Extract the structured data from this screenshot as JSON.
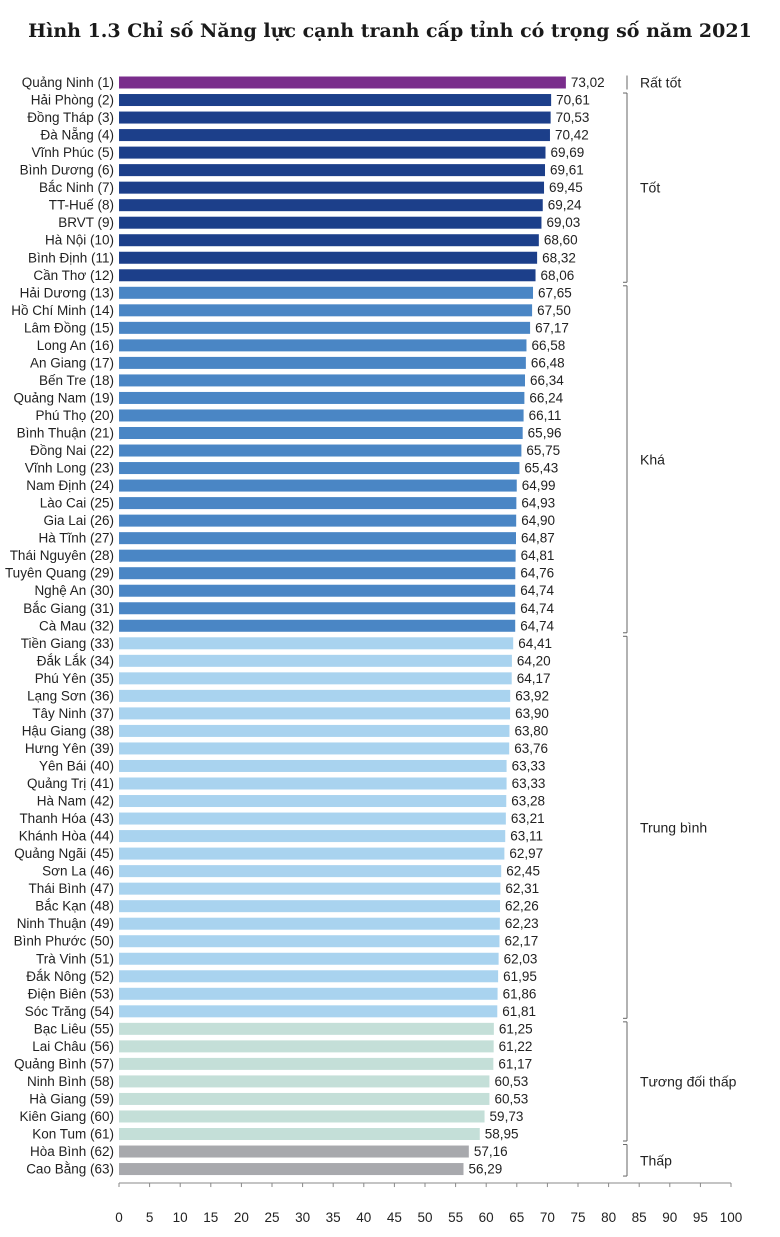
{
  "chart_data": {
    "type": "bar",
    "orientation": "horizontal",
    "title": "Hình 1.3 Chỉ số Năng lực cạnh tranh cấp tỉnh có trọng số năm 2021",
    "xlim": [
      0,
      100
    ],
    "xticks": [
      0,
      5,
      10,
      15,
      20,
      25,
      30,
      35,
      40,
      45,
      50,
      55,
      60,
      65,
      70,
      75,
      80,
      85,
      90,
      95,
      100
    ],
    "xtick_labels": [
      "0",
      "5",
      "10",
      "15",
      "20",
      "25",
      "30",
      "35",
      "40",
      "45",
      "50",
      "55",
      "60",
      "65",
      "70",
      "75",
      "80",
      "85",
      "90",
      "95",
      "100"
    ],
    "grid": false,
    "categories": [
      "Quảng Ninh (1)",
      "Hải Phòng (2)",
      "Đồng Tháp (3)",
      "Đà Nẵng (4)",
      "Vĩnh Phúc (5)",
      "Bình Dương (6)",
      "Bắc Ninh (7)",
      "TT-Huế (8)",
      "BRVT (9)",
      "Hà Nội (10)",
      "Bình Định (11)",
      "Cần Thơ (12)",
      "Hải Dương (13)",
      "Hồ Chí Minh (14)",
      "Lâm Đồng (15)",
      "Long An (16)",
      "An Giang (17)",
      "Bến Tre (18)",
      "Quảng Nam (19)",
      "Phú Thọ (20)",
      "Bình Thuận (21)",
      "Đồng Nai (22)",
      "Vĩnh Long (23)",
      "Nam Định (24)",
      "Lào Cai (25)",
      "Gia Lai (26)",
      "Hà Tĩnh (27)",
      "Thái Nguyên (28)",
      "Tuyên Quang (29)",
      "Nghệ An (30)",
      "Bắc Giang (31)",
      "Cà Mau (32)",
      "Tiền Giang (33)",
      "Đắk Lắk (34)",
      "Phú Yên (35)",
      "Lạng Sơn (36)",
      "Tây Ninh (37)",
      "Hậu Giang (38)",
      "Hưng Yên (39)",
      "Yên Bái (40)",
      "Quảng Trị (41)",
      "Hà Nam (42)",
      "Thanh Hóa (43)",
      "Khánh Hòa (44)",
      "Quảng Ngãi (45)",
      "Sơn La (46)",
      "Thái Bình (47)",
      "Bắc Kạn (48)",
      "Ninh Thuận (49)",
      "Bình Phước (50)",
      "Trà Vinh (51)",
      "Đắk Nông (52)",
      "Điện Biên (53)",
      "Sóc Trăng (54)",
      "Bạc Liêu (55)",
      "Lai Châu (56)",
      "Quảng Bình (57)",
      "Ninh Bình (58)",
      "Hà Giang (59)",
      "Kiên Giang (60)",
      "Kon Tum (61)",
      "Hòa Bình (62)",
      "Cao Bằng (63)"
    ],
    "values": [
      73.02,
      70.61,
      70.53,
      70.42,
      69.69,
      69.61,
      69.45,
      69.24,
      69.03,
      68.6,
      68.32,
      68.06,
      67.65,
      67.5,
      67.17,
      66.58,
      66.48,
      66.34,
      66.24,
      66.11,
      65.96,
      65.75,
      65.43,
      64.99,
      64.93,
      64.9,
      64.87,
      64.81,
      64.76,
      64.74,
      64.74,
      64.74,
      64.41,
      64.2,
      64.17,
      63.92,
      63.9,
      63.8,
      63.76,
      63.33,
      63.33,
      63.28,
      63.21,
      63.11,
      62.97,
      62.45,
      62.31,
      62.26,
      62.23,
      62.17,
      62.03,
      61.95,
      61.86,
      61.81,
      61.25,
      61.22,
      61.17,
      60.53,
      60.53,
      59.73,
      58.95,
      57.16,
      56.29
    ],
    "value_labels": [
      "73,02",
      "70,61",
      "70,53",
      "70,42",
      "69,69",
      "69,61",
      "69,45",
      "69,24",
      "69,03",
      "68,60",
      "68,32",
      "68,06",
      "67,65",
      "67,50",
      "67,17",
      "66,58",
      "66,48",
      "66,34",
      "66,24",
      "66,11",
      "65,96",
      "65,75",
      "65,43",
      "64,99",
      "64,93",
      "64,90",
      "64,87",
      "64,81",
      "64,76",
      "64,74",
      "64,74",
      "64,74",
      "64,41",
      "64,20",
      "64,17",
      "63,92",
      "63,90",
      "63,80",
      "63,76",
      "63,33",
      "63,33",
      "63,28",
      "63,21",
      "63,11",
      "62,97",
      "62,45",
      "62,31",
      "62,26",
      "62,23",
      "62,17",
      "62,03",
      "61,95",
      "61,86",
      "61,81",
      "61,25",
      "61,22",
      "61,17",
      "60,53",
      "60,53",
      "59,73",
      "58,95",
      "57,16",
      "56,29"
    ],
    "groups": [
      {
        "label": "Rất tốt",
        "start": 0,
        "end": 0,
        "color": "#7a2d8c"
      },
      {
        "label": "Tốt",
        "start": 1,
        "end": 11,
        "color": "#1c3f8a"
      },
      {
        "label": "Khá",
        "start": 12,
        "end": 31,
        "color": "#4a86c5"
      },
      {
        "label": "Trung bình",
        "start": 32,
        "end": 53,
        "color": "#a9d3ef"
      },
      {
        "label": "Tương đối thấp",
        "start": 54,
        "end": 60,
        "color": "#c4dfd8"
      },
      {
        "label": "Thấp",
        "start": 61,
        "end": 62,
        "color": "#a8a9ad"
      }
    ]
  }
}
